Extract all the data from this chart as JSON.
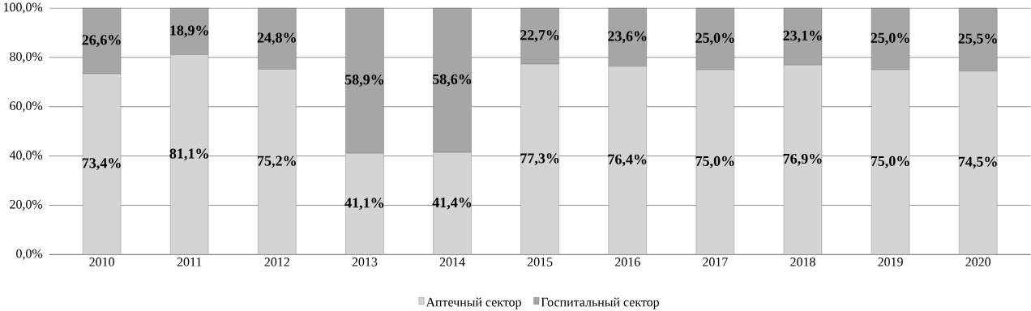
{
  "chart_data": {
    "type": "bar",
    "stacked": true,
    "categories": [
      "2010",
      "2011",
      "2012",
      "2013",
      "2014",
      "2015",
      "2016",
      "2017",
      "2018",
      "2019",
      "2020"
    ],
    "series": [
      {
        "name": "Аптечный сектор",
        "color": "#d4d4d4",
        "values": [
          73.4,
          81.1,
          75.2,
          41.1,
          41.4,
          77.3,
          76.4,
          75.0,
          76.9,
          75.0,
          74.5
        ],
        "value_labels": [
          "73,4%",
          "81,1%",
          "75,2%",
          "41,1%",
          "41,4%",
          "77,3%",
          "76,4%",
          "75,0%",
          "76,9%",
          "75,0%",
          "74,5%"
        ]
      },
      {
        "name": "Госпитальный сектор",
        "color": "#a6a6a6",
        "values": [
          26.6,
          18.9,
          24.8,
          58.9,
          58.6,
          22.7,
          23.6,
          25.0,
          23.1,
          25.0,
          25.5
        ],
        "value_labels": [
          "26,6%",
          "18,9%",
          "24,8%",
          "58,9%",
          "58,6%",
          "22,7%",
          "23,6%",
          "25,0%",
          "23,1%",
          "25,0%",
          "25,5%"
        ]
      }
    ],
    "ylim": [
      0,
      100
    ],
    "yticks": [
      {
        "value": 0,
        "label": "0,0%"
      },
      {
        "value": 20,
        "label": "20,0%"
      },
      {
        "value": 40,
        "label": "40,0%"
      },
      {
        "value": 60,
        "label": "60,0%"
      },
      {
        "value": 80,
        "label": "80,0%"
      },
      {
        "value": 100,
        "label": "100,0%"
      }
    ],
    "grid": "y",
    "legend": "bottom"
  }
}
